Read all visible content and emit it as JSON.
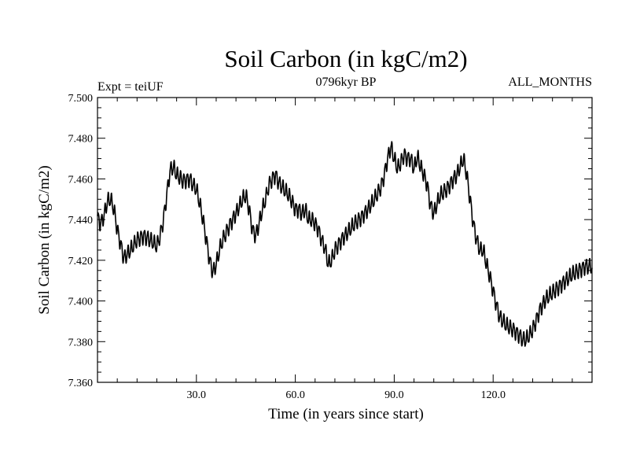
{
  "chart_data": {
    "type": "line",
    "title": "Soil Carbon (in kgC/m2)",
    "subtitle_left": "Expt = teiUF",
    "subtitle_center": "0796kyr BP",
    "subtitle_right": "ALL_MONTHS",
    "xlabel": "Time (in years since start)",
    "ylabel": "Soil Carbon (in kgC/m2)",
    "xlim": [
      0,
      150
    ],
    "ylim": [
      7.36,
      7.5
    ],
    "x_major_ticks": [
      30,
      60,
      90,
      120
    ],
    "x_tick_labels": [
      "30.0",
      "60.0",
      "90.0",
      "120.0"
    ],
    "x_minor_step": 6,
    "y_major_ticks": [
      7.36,
      7.38,
      7.4,
      7.42,
      7.44,
      7.46,
      7.48,
      7.5
    ],
    "y_tick_labels": [
      "7.360",
      "7.380",
      "7.400",
      "7.420",
      "7.440",
      "7.460",
      "7.480",
      "7.500"
    ],
    "y_minor_step": 0.005,
    "line_color": "#000000",
    "seasonal_amplitude": 0.0035,
    "samples_per_year": 12,
    "series": [
      {
        "name": "Soil Carbon",
        "trend_x": [
          0,
          1,
          2,
          3,
          4,
          5,
          6,
          7,
          8,
          10,
          12,
          14,
          16,
          18,
          19,
          20,
          21,
          22,
          23,
          24,
          26,
          28,
          29,
          30,
          31,
          32,
          33,
          34,
          35,
          36,
          37,
          38,
          40,
          42,
          44,
          45,
          46,
          47,
          48,
          49,
          50,
          51,
          52,
          53,
          54,
          55,
          56,
          58,
          59,
          60,
          61,
          62,
          63,
          64,
          65,
          66,
          67,
          68,
          69,
          70,
          71,
          72,
          74,
          76,
          78,
          80,
          82,
          84,
          86,
          87,
          88,
          89,
          90,
          91,
          92,
          93,
          94,
          95,
          96,
          97,
          98,
          99,
          100,
          101,
          102,
          103,
          104,
          106,
          108,
          109,
          110,
          111,
          112,
          113,
          114,
          115,
          116,
          117,
          118,
          119,
          120,
          121,
          122,
          124,
          126,
          128,
          129,
          130,
          131,
          132,
          133,
          134,
          136,
          138,
          140,
          142,
          144,
          146,
          148,
          150
        ],
        "trend_y": [
          7.441,
          7.438,
          7.442,
          7.449,
          7.45,
          7.445,
          7.435,
          7.428,
          7.421,
          7.425,
          7.43,
          7.432,
          7.43,
          7.427,
          7.432,
          7.44,
          7.452,
          7.464,
          7.466,
          7.462,
          7.459,
          7.46,
          7.457,
          7.455,
          7.448,
          7.44,
          7.43,
          7.42,
          7.414,
          7.418,
          7.425,
          7.43,
          7.437,
          7.443,
          7.45,
          7.452,
          7.445,
          7.435,
          7.432,
          7.438,
          7.445,
          7.45,
          7.457,
          7.46,
          7.462,
          7.458,
          7.456,
          7.452,
          7.449,
          7.445,
          7.445,
          7.443,
          7.445,
          7.44,
          7.44,
          7.438,
          7.435,
          7.43,
          7.426,
          7.418,
          7.42,
          7.425,
          7.43,
          7.434,
          7.438,
          7.441,
          7.445,
          7.45,
          7.456,
          7.462,
          7.47,
          7.476,
          7.47,
          7.465,
          7.468,
          7.472,
          7.47,
          7.47,
          7.465,
          7.471,
          7.466,
          7.462,
          7.457,
          7.447,
          7.443,
          7.448,
          7.452,
          7.455,
          7.46,
          7.462,
          7.466,
          7.47,
          7.462,
          7.45,
          7.438,
          7.43,
          7.425,
          7.425,
          7.418,
          7.412,
          7.405,
          7.398,
          7.392,
          7.388,
          7.386,
          7.383,
          7.381,
          7.381,
          7.383,
          7.386,
          7.39,
          7.395,
          7.401,
          7.404,
          7.407,
          7.41,
          7.413,
          7.415,
          7.417,
          7.417
        ]
      }
    ]
  }
}
